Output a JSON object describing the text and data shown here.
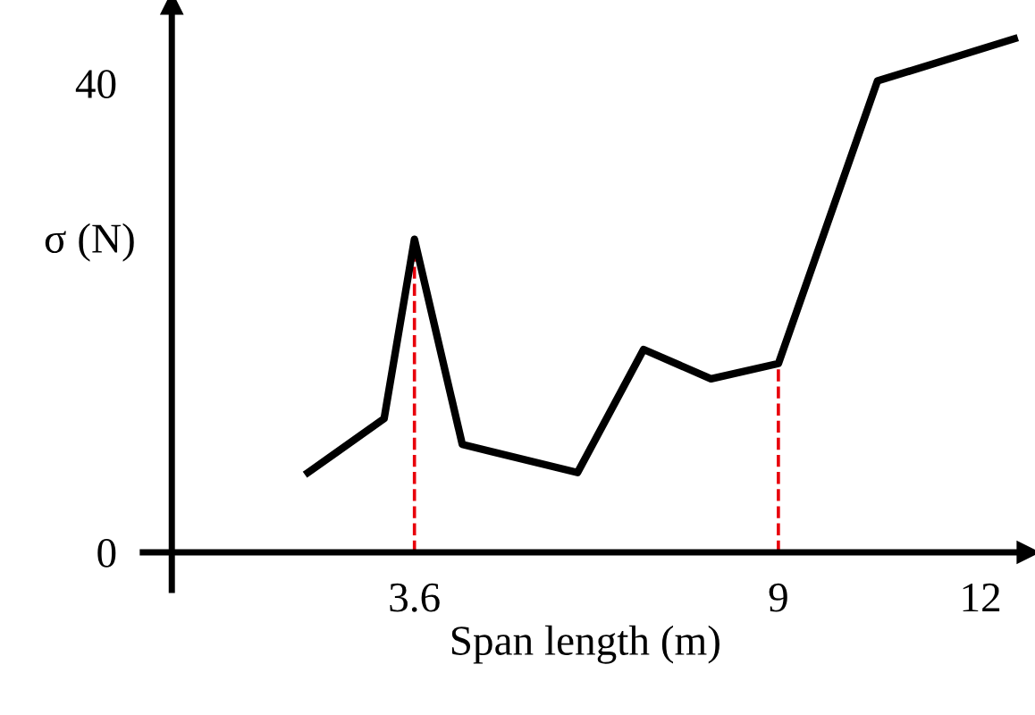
{
  "chart_data": {
    "type": "line",
    "xlabel": "Span length (m)",
    "ylabel": "σ (N)",
    "x": [
      2.02,
      3.15,
      3.6,
      4.31,
      6.02,
      7.0,
      8.0,
      9.0,
      10.47,
      12.5
    ],
    "series": [
      {
        "color": "#000000",
        "values": [
          6.8,
          11.4,
          26.7,
          9.2,
          6.8,
          17.3,
          14.8,
          16.1,
          40.2,
          43.8
        ]
      }
    ],
    "xlim": [
      -0.43,
      12.7
    ],
    "ylim": [
      -3.2,
      46.8
    ],
    "xticks": [
      3.6,
      9,
      12
    ],
    "yticks": [
      0,
      40
    ],
    "ref_lines": [
      {
        "axis": "x",
        "value": 3.6,
        "color": "#e8000b",
        "line_style": "dashed"
      },
      {
        "axis": "x",
        "value": 9,
        "color": "#e8000b",
        "line_style": "dashed"
      }
    ],
    "grid": false,
    "legend": false,
    "marker": "none",
    "line_style": "solid"
  }
}
